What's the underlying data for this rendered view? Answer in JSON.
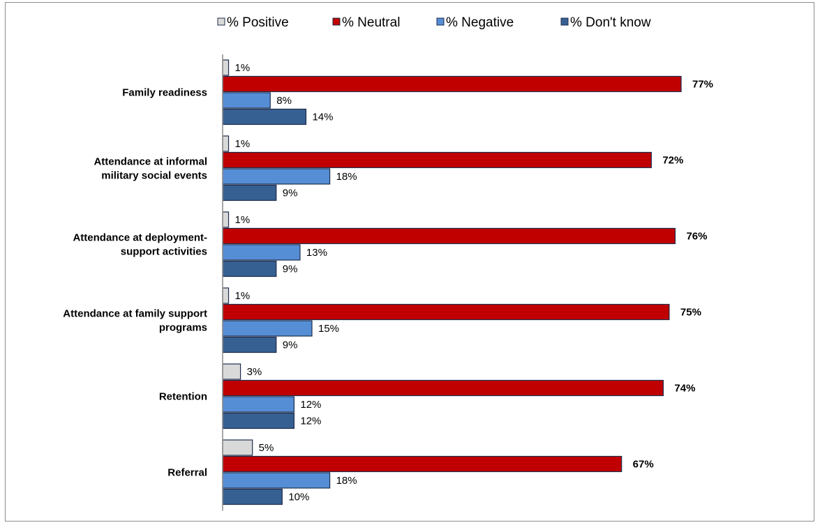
{
  "chart_data": {
    "type": "bar",
    "orientation": "horizontal",
    "categories": [
      [
        "Family readiness"
      ],
      [
        "Attendance at informal",
        "military social events"
      ],
      [
        "Attendance at deployment-",
        "support activities"
      ],
      [
        "Attendance at family support",
        "programs"
      ],
      [
        "Retention"
      ],
      [
        "Referral"
      ]
    ],
    "series": [
      {
        "name": "% Positive",
        "color": "#d9d9d9",
        "values": [
          1,
          1,
          1,
          1,
          3,
          5
        ],
        "labels": [
          "1%",
          "1%",
          "1%",
          "1%",
          "3%",
          "5%"
        ],
        "bold": false
      },
      {
        "name": "% Neutral",
        "color": "#c00000",
        "values": [
          77,
          72,
          76,
          75,
          74,
          67
        ],
        "labels": [
          "77%",
          "72%",
          "76%",
          "75%",
          "74%",
          "67%"
        ],
        "bold": true
      },
      {
        "name": "% Negative",
        "color": "#558ed5",
        "values": [
          8,
          18,
          13,
          15,
          12,
          18
        ],
        "labels": [
          "8%",
          "18%",
          "13%",
          "15%",
          "12%",
          "18%"
        ],
        "bold": false
      },
      {
        "name": "% Don't know",
        "color": "#376092",
        "values": [
          14,
          9,
          9,
          9,
          12,
          10
        ],
        "labels": [
          "14%",
          "9%",
          "9%",
          "9%",
          "12%",
          "10%"
        ],
        "bold": false
      }
    ],
    "xlim": [
      0,
      77
    ],
    "grid": false,
    "legend": "top"
  }
}
